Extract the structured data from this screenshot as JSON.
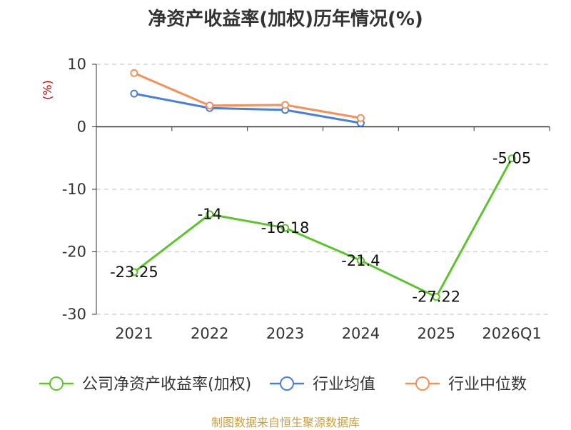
{
  "chart_data": {
    "type": "line",
    "title": "净资产收益率(加权)历年情况(%)",
    "ylabel": "(%)",
    "categories": [
      "2021",
      "2022",
      "2023",
      "2024",
      "2025",
      "2026Q1"
    ],
    "yticks": [
      10,
      0,
      -10,
      -20,
      -30
    ],
    "ylim": [
      -30,
      10
    ],
    "grid": true,
    "legend_position": "bottom",
    "series": [
      {
        "name": "公司净资产收益率(加权)",
        "color": "#5cc52c",
        "values": [
          -23.25,
          -14,
          -16.18,
          -21.4,
          -27.22,
          -5.05
        ],
        "labels": [
          "-23.25",
          "-14",
          "-16.18",
          "-21.4",
          "-27.22",
          "-5.05"
        ]
      },
      {
        "name": "行业均值",
        "color": "#4a7fd8",
        "values": [
          5.3,
          3.0,
          2.7,
          0.6,
          null,
          null
        ]
      },
      {
        "name": "行业中位数",
        "color": "#f59158",
        "values": [
          8.6,
          3.4,
          3.5,
          1.4,
          null,
          null
        ]
      }
    ]
  },
  "source": "制图数据来自恒生聚源数据库"
}
